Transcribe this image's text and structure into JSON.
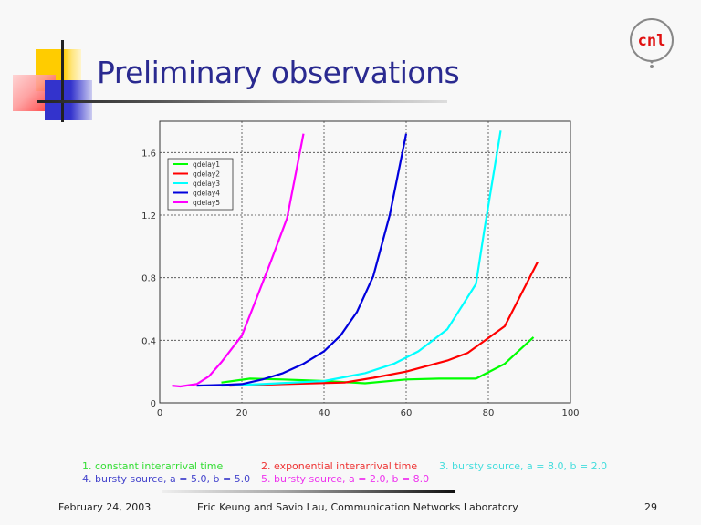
{
  "slide": {
    "title": "Preliminary observations",
    "logo_text": "cnl",
    "footer": {
      "date": "February 24, 2003",
      "authors": "Eric Keung and Savio Lau, Communication Networks Laboratory",
      "page": "29"
    }
  },
  "captions": [
    {
      "text": "1. constant interarrival time",
      "color": "#33dd33"
    },
    {
      "text": "2. exponential interarrival time",
      "color": "#ee3333"
    },
    {
      "text": "3. bursty source, a = 8.0, b = 2.0",
      "color": "#44dddd"
    },
    {
      "text": "4. bursty source, a = 5.0, b = 5.0",
      "color": "#4444cc"
    },
    {
      "text": "5. bursty source, a = 2.0, b = 8.0",
      "color": "#ee33ee"
    }
  ],
  "chart_data": {
    "type": "line",
    "title": "",
    "xlabel": "",
    "ylabel": "",
    "xlim": [
      0,
      100
    ],
    "ylim": [
      0,
      1.8
    ],
    "xticks": [
      0,
      20,
      40,
      60,
      80,
      100
    ],
    "xtick_labels": [
      "0",
      "20",
      "40",
      "60",
      "80",
      "100"
    ],
    "yticks": [
      0,
      0.4,
      0.8,
      1.2,
      1.6
    ],
    "ytick_labels": [
      "0",
      "0.4",
      "0.8",
      "1.2",
      "1.6"
    ],
    "grid": true,
    "legend_position": "top-left",
    "series": [
      {
        "name": "qdelay1",
        "color": "#00ff00",
        "x": [
          15,
          22,
          30,
          40,
          50,
          60,
          68,
          77,
          84,
          91
        ],
        "y": [
          0.13,
          0.155,
          0.15,
          0.14,
          0.125,
          0.15,
          0.155,
          0.155,
          0.25,
          0.42
        ]
      },
      {
        "name": "qdelay2",
        "color": "#ff0000",
        "x": [
          17,
          30,
          45,
          52,
          60,
          70,
          75,
          84,
          92
        ],
        "y": [
          0.11,
          0.12,
          0.13,
          0.16,
          0.2,
          0.27,
          0.32,
          0.49,
          0.9
        ]
      },
      {
        "name": "qdelay3",
        "color": "#00ffff",
        "x": [
          15,
          25,
          40,
          50,
          57,
          63,
          70,
          77,
          79,
          83
        ],
        "y": [
          0.11,
          0.12,
          0.14,
          0.19,
          0.25,
          0.33,
          0.47,
          0.76,
          1.1,
          1.74
        ]
      },
      {
        "name": "qdelay4",
        "color": "#0000dd",
        "x": [
          9,
          15,
          20,
          25,
          30,
          35,
          40,
          44,
          48,
          52,
          56,
          60
        ],
        "y": [
          0.11,
          0.115,
          0.12,
          0.15,
          0.19,
          0.25,
          0.33,
          0.43,
          0.58,
          0.81,
          1.2,
          1.72
        ]
      },
      {
        "name": "qdelay5",
        "color": "#ff00ff",
        "x": [
          3,
          5,
          9,
          12,
          15,
          20,
          23,
          27,
          31,
          35
        ],
        "y": [
          0.11,
          0.105,
          0.12,
          0.17,
          0.26,
          0.43,
          0.63,
          0.9,
          1.18,
          1.72
        ]
      }
    ]
  }
}
